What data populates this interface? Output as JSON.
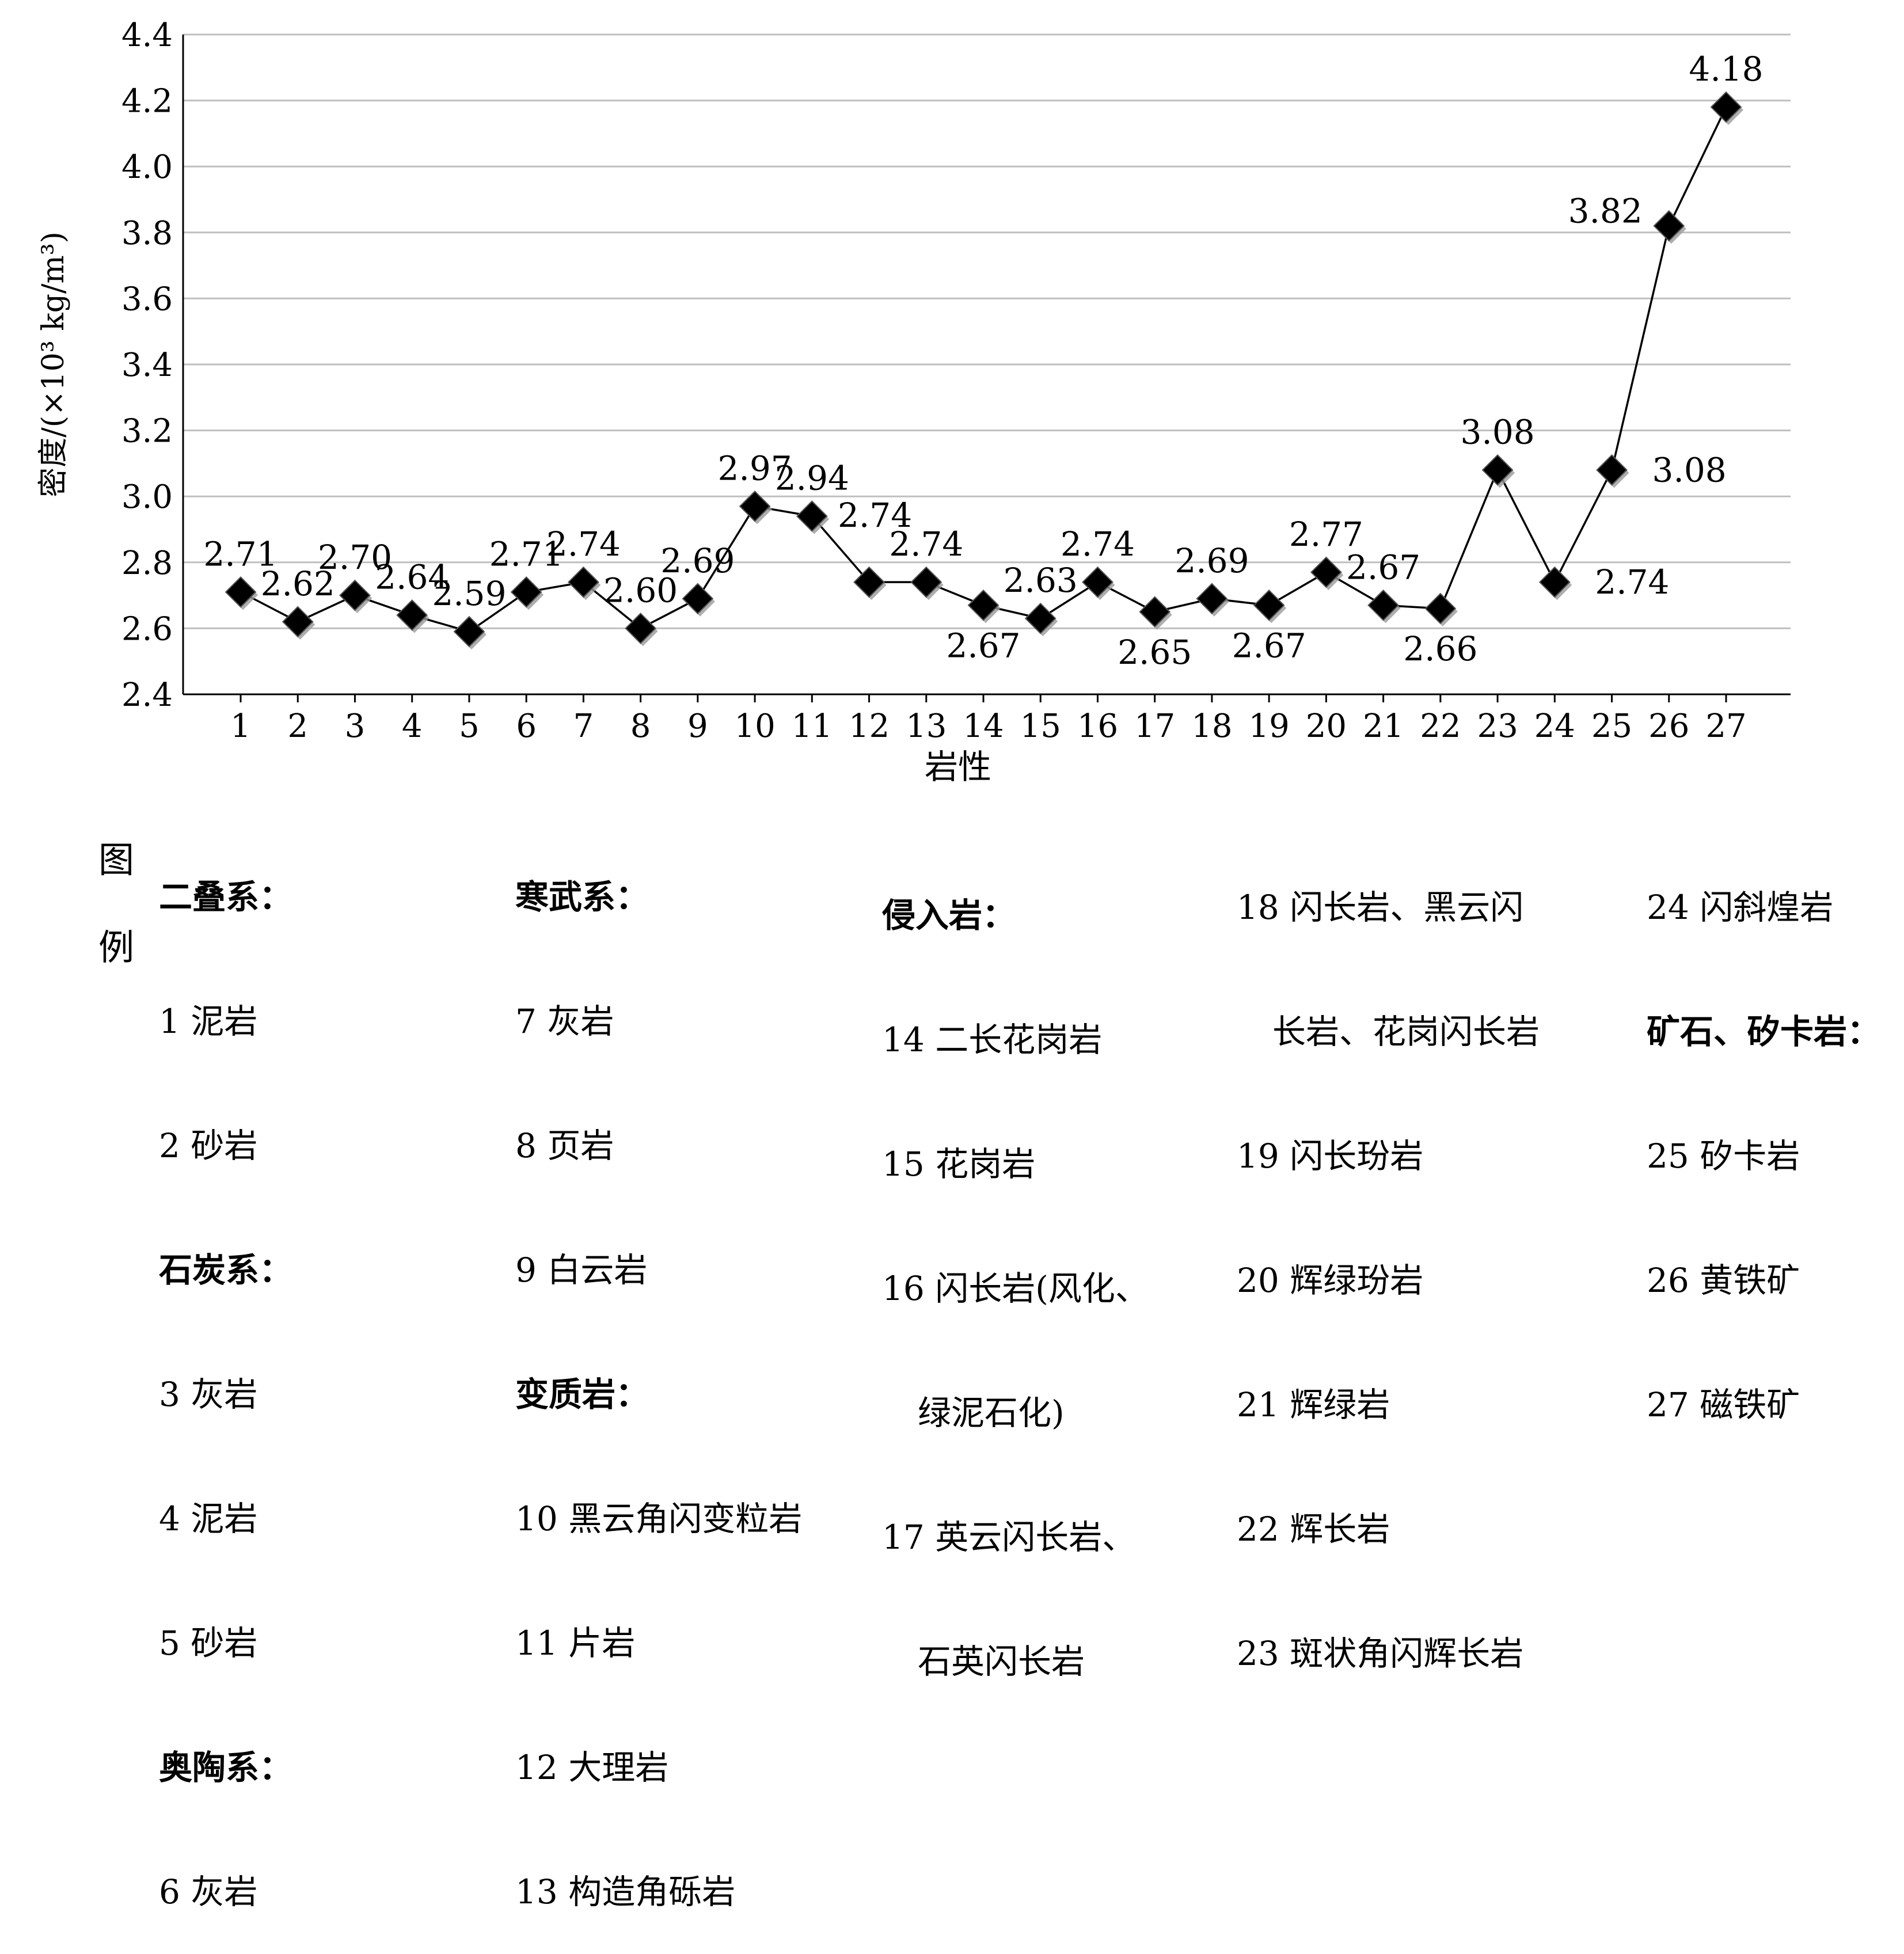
{
  "chart_data": {
    "type": "line",
    "xlabel": "岩性",
    "ylabel": "密度/(×10³ kg/m³)",
    "ylim": [
      2.4,
      4.4
    ],
    "yticks": [
      "2.4",
      "2.6",
      "2.8",
      "3.0",
      "3.2",
      "3.4",
      "3.6",
      "3.8",
      "4.0",
      "4.2",
      "4.4"
    ],
    "grid": true,
    "categories": [
      "1",
      "2",
      "3",
      "4",
      "5",
      "6",
      "7",
      "8",
      "9",
      "10",
      "11",
      "12",
      "13",
      "14",
      "15",
      "16",
      "17",
      "18",
      "19",
      "20",
      "21",
      "22",
      "23",
      "24",
      "25",
      "26",
      "27"
    ],
    "series": [
      {
        "values": [
          2.71,
          2.62,
          2.7,
          2.64,
          2.59,
          2.71,
          2.74,
          2.6,
          2.69,
          2.97,
          2.94,
          2.74,
          2.74,
          2.67,
          2.63,
          2.74,
          2.65,
          2.69,
          2.67,
          2.77,
          2.67,
          2.66,
          3.08,
          2.74,
          3.08,
          3.82,
          4.18
        ],
        "labels": [
          "2.71",
          "2.62",
          "2.70",
          "2.64",
          "2.59",
          "2.71",
          "2.74",
          "2.60",
          "2.69",
          "2.97",
          "2.94",
          "2.74",
          "2.74",
          "2.67",
          "2.63",
          "2.74",
          "2.65",
          "2.69",
          "2.67",
          "2.77",
          "2.67",
          "2.66",
          "3.08",
          "2.74",
          "3.08",
          "3.82",
          "4.18"
        ],
        "label_positions": [
          "above",
          "above",
          "above",
          "above",
          "above",
          "above",
          "above",
          "above",
          "above",
          "above",
          "above",
          "above-right",
          "above",
          "below",
          "above",
          "above",
          "below",
          "above",
          "below",
          "above",
          "above",
          "below",
          "above",
          "right",
          "right",
          "left",
          "above"
        ],
        "color": "#000000",
        "marker": "diamond"
      }
    ]
  },
  "legend": {
    "title": "图例",
    "columns": [
      [
        "二叠系：",
        "1 泥岩",
        "2 砂岩",
        "石炭系：",
        "3 灰岩",
        "4 泥岩",
        "5 砂岩",
        "奥陶系：",
        "6 灰岩"
      ],
      [
        "寒武系：",
        "7 灰岩",
        "8 页岩",
        "9 白云岩",
        "变质岩：",
        "10 黑云角闪变粒岩",
        "11 片岩",
        "12 大理岩",
        "13 构造角砾岩"
      ],
      [
        "侵入岩：",
        "14 二长花岗岩",
        "15 花岗岩",
        "16 闪长岩(风化、",
        "绿泥石化)",
        "17 英云闪长岩、",
        "石英闪长岩"
      ],
      [
        "18 闪长岩、黑云闪",
        "长岩、花岗闪长岩",
        "19 闪长玢岩",
        "20 辉绿玢岩",
        "21 辉绿岩",
        "22 辉长岩",
        "23 斑状角闪辉长岩"
      ],
      [
        "24 闪斜煌岩",
        "矿石、矽卡岩：",
        "25 矽卡岩",
        "26 黄铁矿",
        "27 磁铁矿"
      ]
    ]
  }
}
